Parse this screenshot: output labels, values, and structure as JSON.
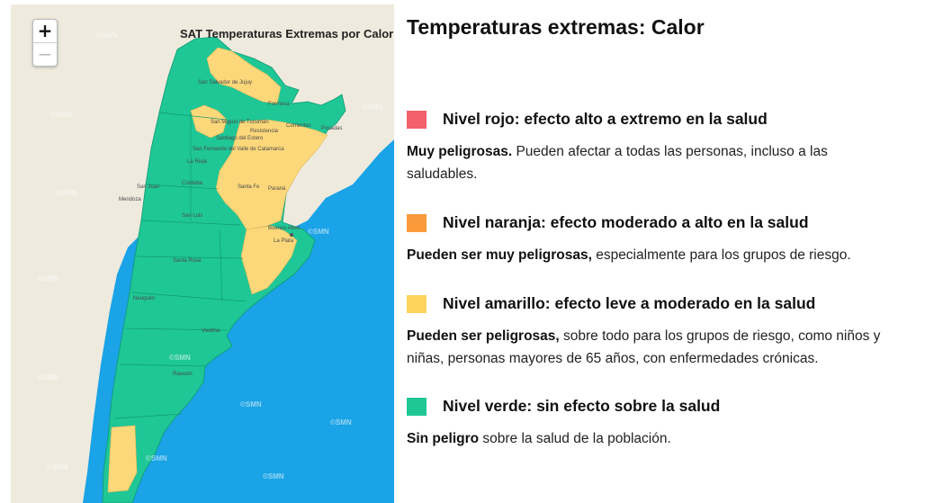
{
  "map": {
    "title": "SAT Temperaturas Extremas por Calor",
    "zoom_in_label": "+",
    "zoom_out_label": "−",
    "watermark": "©SMN",
    "cities": [
      "San Salvador de Jujuy",
      "Formosa",
      "San Miguel de Tucumán",
      "Resistencia",
      "Corrientes",
      "Posadas",
      "Santiago del Estero",
      "San Fernando del Valle de Catamarca",
      "La Rioja",
      "Córdoba",
      "San Juan",
      "Mendoza",
      "Santa Fe",
      "Paraná",
      "San Luis",
      "Buenos Aires",
      "La Plata",
      "Santa Rosa",
      "Neuquén",
      "Viedma",
      "Rawson"
    ],
    "colors": {
      "ocean": "#1aa3e6",
      "land": "#eeeade",
      "green": "#1fc796",
      "yellow": "#fdd87b",
      "border": "#0f9a72"
    }
  },
  "panel": {
    "title": "Temperaturas extremas: Calor",
    "levels": [
      {
        "color": "#f4606c",
        "title": "Nivel rojo: efecto alto a extremo en la salud",
        "desc_bold": "Muy peligrosas.",
        "desc_lines": [
          " Pueden afectar a todas las personas, incluso a las",
          "saludables."
        ]
      },
      {
        "color": "#fa9a3b",
        "title": "Nivel naranja: efecto moderado a alto en la salud",
        "desc_bold": "Pueden ser muy peligrosas,",
        "desc_lines": [
          " especialmente para los grupos de riesgo."
        ]
      },
      {
        "color": "#fdd35d",
        "title": "Nivel amarillo: efecto leve a moderado en la salud",
        "desc_bold": "Pueden ser peligrosas,",
        "desc_lines": [
          " sobre todo para los grupos de riesgo, como niños y",
          "niñas, personas mayores de 65 años, con enfermedades crónicas."
        ]
      },
      {
        "color": "#1fc796",
        "title": "Nivel verde: sin efecto sobre la salud",
        "desc_bold": "Sin peligro",
        "desc_lines": [
          " sobre la salud de la población."
        ]
      }
    ]
  }
}
